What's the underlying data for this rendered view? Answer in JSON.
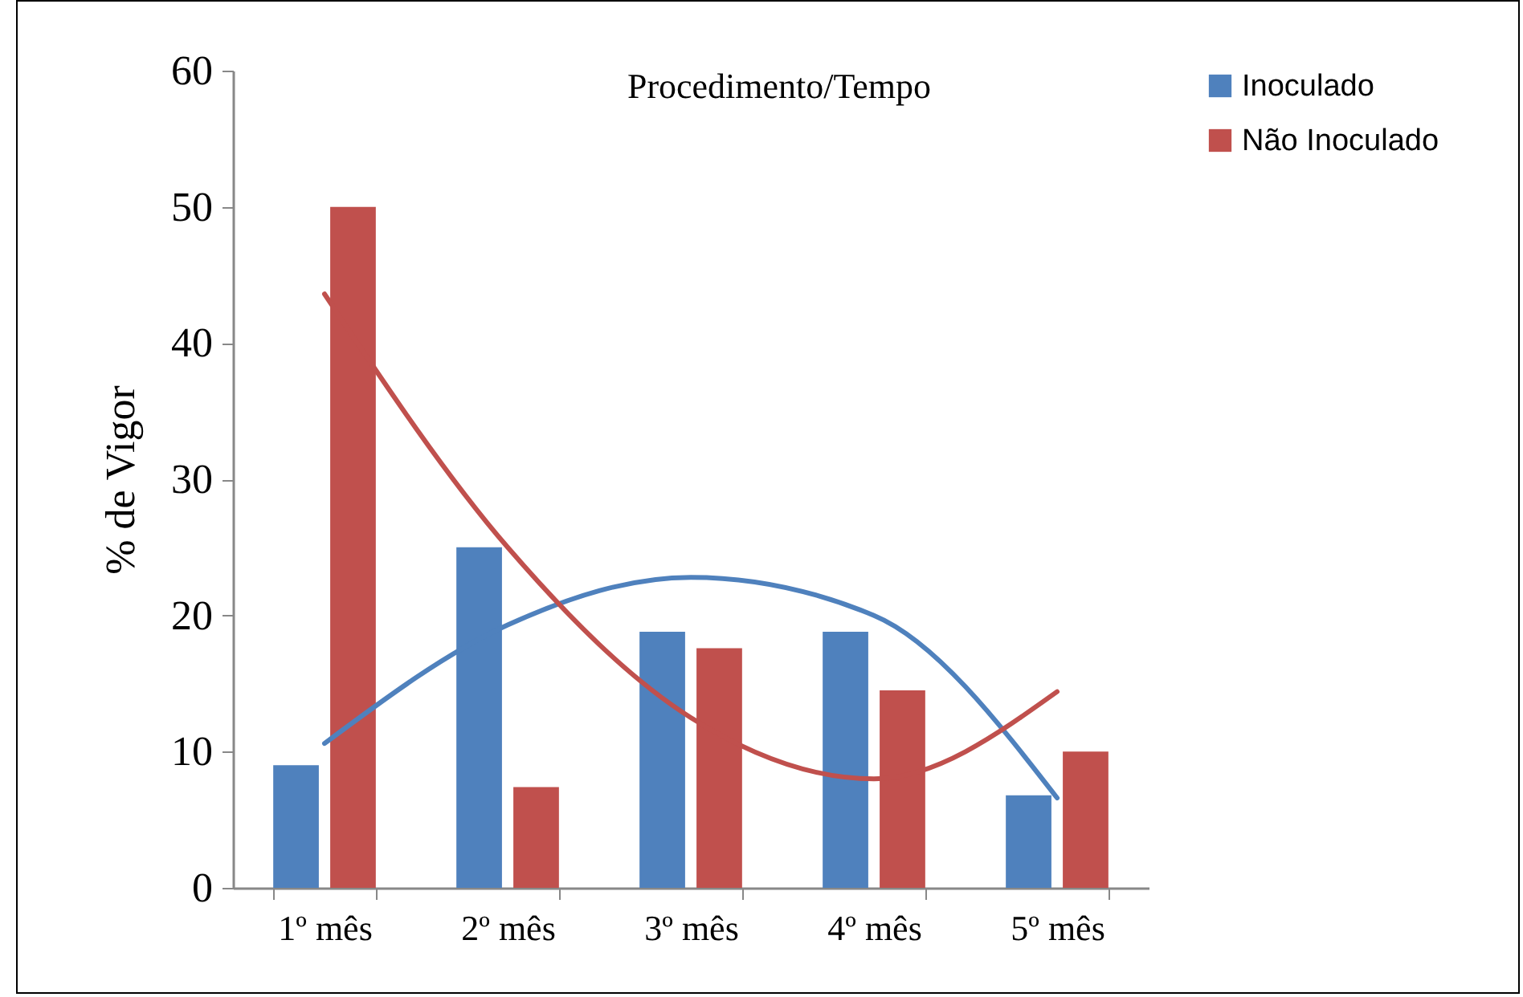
{
  "chart_data": {
    "type": "bar",
    "title": "Procedimento/Tempo",
    "ylabel": "% de Vigor",
    "categories": [
      "1º mês",
      "2º mês",
      "3º  mês",
      "4º mês",
      "5º  mês"
    ],
    "series": [
      {
        "name": "Inoculado",
        "color": "#4f81bd",
        "values": [
          9,
          25,
          18.8,
          18.8,
          6.8
        ]
      },
      {
        "name": "Não Inoculado",
        "color": "#c0504d",
        "values": [
          50,
          7.4,
          17.6,
          14.5,
          10
        ]
      },
      {
        "type": "line",
        "color": "#4f81bd",
        "x": [
          "1º mês",
          "2º mês",
          "3º  mês",
          "4º mês",
          "5º  mês"
        ],
        "values": [
          10.6,
          19.3,
          22.8,
          20,
          6.6
        ]
      },
      {
        "type": "line",
        "color": "#c0504d",
        "x": [
          "1º mês",
          "2º mês",
          "3º  mês",
          "4º mês",
          "5º  mês"
        ],
        "values": [
          43.6,
          25,
          12.5,
          8,
          14.4
        ]
      }
    ],
    "ylim": [
      0,
      60
    ],
    "yticks": [
      0,
      10,
      20,
      30,
      40,
      50,
      60
    ],
    "grid": false,
    "legend": "right"
  }
}
